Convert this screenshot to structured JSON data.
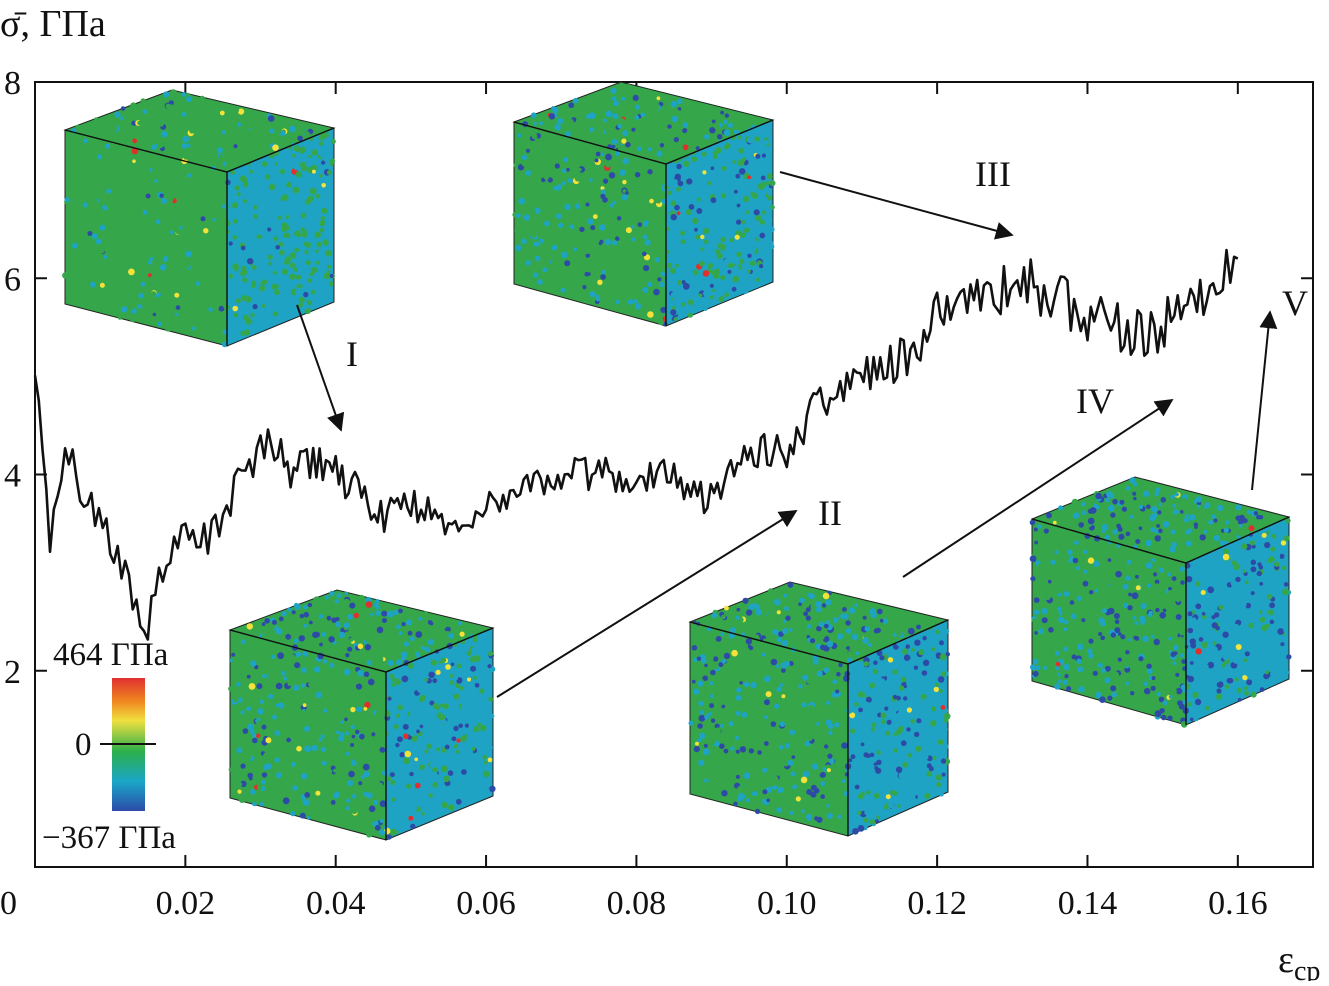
{
  "chart_data": {
    "type": "line",
    "ylabel": "σ̄, ГПа",
    "xlabel_main": "ε",
    "xlabel_sub": "ср",
    "xlim": [
      0,
      0.17
    ],
    "ylim": [
      0,
      8
    ],
    "x_ticks": [
      "0",
      "0.02",
      "0.04",
      "0.06",
      "0.08",
      "0.10",
      "0.12",
      "0.14",
      "0.16"
    ],
    "x_tick_values": [
      0,
      0.02,
      0.04,
      0.06,
      0.08,
      0.1,
      0.12,
      0.14,
      0.16
    ],
    "y_ticks": [
      "2",
      "4",
      "6",
      "8"
    ],
    "y_tick_values": [
      2,
      4,
      6,
      8
    ],
    "series": [
      {
        "color": "#111111",
        "x": [
          0,
          0.001,
          0.002,
          0.003,
          0.004,
          0.006,
          0.008,
          0.01,
          0.012,
          0.014,
          0.015,
          0.017,
          0.019,
          0.021,
          0.023,
          0.025,
          0.027,
          0.029,
          0.031,
          0.034,
          0.037,
          0.04,
          0.043,
          0.046,
          0.05,
          0.055,
          0.06,
          0.065,
          0.07,
          0.075,
          0.08,
          0.085,
          0.089,
          0.093,
          0.097,
          0.1,
          0.104,
          0.108,
          0.112,
          0.116,
          0.12,
          0.124,
          0.128,
          0.132,
          0.136,
          0.14,
          0.144,
          0.148,
          0.152,
          0.155,
          0.158,
          0.16
        ],
        "values": [
          5.2,
          4.2,
          3.4,
          3.6,
          4.4,
          3.9,
          3.6,
          3.3,
          2.95,
          2.6,
          2.5,
          3.0,
          3.3,
          3.4,
          3.3,
          3.55,
          3.9,
          4.1,
          4.4,
          4.0,
          4.15,
          4.0,
          3.85,
          3.55,
          3.75,
          3.45,
          3.65,
          3.9,
          3.95,
          4.05,
          3.95,
          4.0,
          3.75,
          4.1,
          4.3,
          4.2,
          4.7,
          4.9,
          5.1,
          5.15,
          5.7,
          5.8,
          5.9,
          5.95,
          5.8,
          5.6,
          5.5,
          5.35,
          5.65,
          5.75,
          6.1,
          6.2
        ]
      }
    ],
    "annotations": [
      {
        "text": "I",
        "at": [
          0.041,
          4.4
        ]
      },
      {
        "text": "II",
        "at": [
          0.1,
          4.0
        ]
      },
      {
        "text": "III",
        "at": [
          0.127,
          6.5
        ]
      },
      {
        "text": "IV",
        "at": [
          0.148,
          5.3
        ]
      },
      {
        "text": "V",
        "at": [
          0.161,
          5.8
        ]
      }
    ],
    "colorbar": {
      "max_label": "464 ГПа",
      "zero_label": "0",
      "min_label": "−367 ГПа",
      "colors": [
        "#e03030",
        "#f08a20",
        "#f0e040",
        "#2db04a",
        "#1aa6c8",
        "#2c4aa8"
      ]
    },
    "inset_colors": {
      "green": "#35a64a",
      "cyan": "#1fa3c4",
      "blue": "#2d4ba6",
      "yellow": "#f2e23a",
      "red": "#e0302c"
    }
  }
}
